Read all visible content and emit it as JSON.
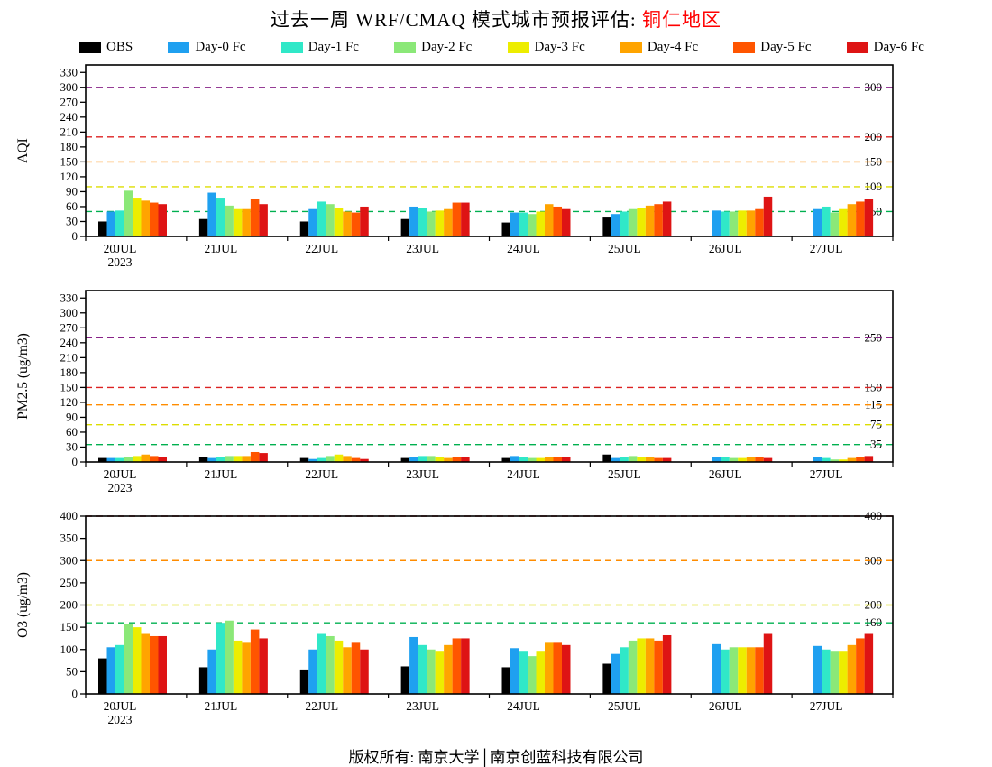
{
  "title": {
    "main": "过去一周 WRF/CMAQ 模式城市预报评估: ",
    "region": "铜仁地区",
    "region_color": "#ff0000"
  },
  "footer": {
    "text": "版权所有: 南京大学│南京创蓝科技有限公司"
  },
  "legend": [
    {
      "label": "OBS",
      "color": "#000000"
    },
    {
      "label": "Day-0 Fc",
      "color": "#1FA0F0"
    },
    {
      "label": "Day-1 Fc",
      "color": "#30E8C8"
    },
    {
      "label": "Day-2 Fc",
      "color": "#8BE878"
    },
    {
      "label": "Day-3 Fc",
      "color": "#EDED00"
    },
    {
      "label": "Day-4 Fc",
      "color": "#FFA400"
    },
    {
      "label": "Day-5 Fc",
      "color": "#FF5500"
    },
    {
      "label": "Day-6 Fc",
      "color": "#DE1414"
    }
  ],
  "chart_data": [
    {
      "type": "bar",
      "name": "aqi",
      "ylabel": "AQI",
      "ylim": [
        0,
        345
      ],
      "yticks": [
        0,
        30,
        60,
        90,
        120,
        150,
        180,
        210,
        240,
        270,
        300,
        330
      ],
      "categories": [
        "20JUL",
        "21JUL",
        "22JUL",
        "23JUL",
        "24JUL",
        "25JUL",
        "26JUL",
        "27JUL"
      ],
      "x_sub_label": "2023",
      "thresholds": [
        {
          "value": 50,
          "color": "#00B050",
          "label": "50"
        },
        {
          "value": 100,
          "color": "#DDDD00",
          "label": "100"
        },
        {
          "value": 150,
          "color": "#FF8C00",
          "label": "150"
        },
        {
          "value": 200,
          "color": "#DD2222",
          "label": "200"
        },
        {
          "value": 300,
          "color": "#882288",
          "label": "300"
        }
      ],
      "series": [
        {
          "name": "OBS",
          "color": "#000000",
          "values": [
            30,
            35,
            30,
            35,
            28,
            38,
            null,
            null
          ]
        },
        {
          "name": "Day-0 Fc",
          "color": "#1FA0F0",
          "values": [
            50,
            88,
            55,
            60,
            48,
            45,
            52,
            55
          ]
        },
        {
          "name": "Day-1 Fc",
          "color": "#30E8C8",
          "values": [
            52,
            78,
            70,
            58,
            48,
            50,
            50,
            60
          ]
        },
        {
          "name": "Day-2 Fc",
          "color": "#8BE878",
          "values": [
            92,
            62,
            65,
            50,
            45,
            55,
            50,
            48
          ]
        },
        {
          "name": "Day-3 Fc",
          "color": "#EDED00",
          "values": [
            78,
            55,
            58,
            52,
            50,
            58,
            52,
            55
          ]
        },
        {
          "name": "Day-4 Fc",
          "color": "#FFA400",
          "values": [
            72,
            55,
            50,
            55,
            65,
            62,
            52,
            65
          ]
        },
        {
          "name": "Day-5 Fc",
          "color": "#FF5500",
          "values": [
            68,
            75,
            48,
            68,
            60,
            65,
            55,
            70
          ]
        },
        {
          "name": "Day-6 Fc",
          "color": "#DE1414",
          "values": [
            65,
            65,
            60,
            68,
            55,
            70,
            80,
            75
          ]
        }
      ]
    },
    {
      "type": "bar",
      "name": "pm25",
      "ylabel": "PM2.5 (ug/m3)",
      "ylim": [
        0,
        345
      ],
      "yticks": [
        0,
        30,
        60,
        90,
        120,
        150,
        180,
        210,
        240,
        270,
        300,
        330
      ],
      "categories": [
        "20JUL",
        "21JUL",
        "22JUL",
        "23JUL",
        "24JUL",
        "25JUL",
        "26JUL",
        "27JUL"
      ],
      "x_sub_label": "2023",
      "thresholds": [
        {
          "value": 35,
          "color": "#00B050",
          "label": "35"
        },
        {
          "value": 75,
          "color": "#DDDD00",
          "label": "75"
        },
        {
          "value": 115,
          "color": "#FF8C00",
          "label": "115"
        },
        {
          "value": 150,
          "color": "#DD2222",
          "label": "150"
        },
        {
          "value": 250,
          "color": "#882288",
          "label": "250"
        }
      ],
      "series": [
        {
          "name": "OBS",
          "color": "#000000",
          "values": [
            8,
            10,
            8,
            8,
            8,
            15,
            null,
            null
          ]
        },
        {
          "name": "Day-0 Fc",
          "color": "#1FA0F0",
          "values": [
            8,
            8,
            6,
            10,
            12,
            8,
            10,
            10
          ]
        },
        {
          "name": "Day-1 Fc",
          "color": "#30E8C8",
          "values": [
            8,
            10,
            8,
            12,
            10,
            10,
            10,
            8
          ]
        },
        {
          "name": "Day-2 Fc",
          "color": "#8BE878",
          "values": [
            10,
            12,
            12,
            12,
            8,
            12,
            8,
            5
          ]
        },
        {
          "name": "Day-3 Fc",
          "color": "#EDED00",
          "values": [
            12,
            12,
            15,
            10,
            8,
            10,
            8,
            5
          ]
        },
        {
          "name": "Day-4 Fc",
          "color": "#FFA400",
          "values": [
            15,
            12,
            12,
            8,
            10,
            10,
            10,
            8
          ]
        },
        {
          "name": "Day-5 Fc",
          "color": "#FF5500",
          "values": [
            12,
            20,
            8,
            10,
            10,
            8,
            10,
            10
          ]
        },
        {
          "name": "Day-6 Fc",
          "color": "#DE1414",
          "values": [
            10,
            18,
            6,
            10,
            10,
            8,
            8,
            12
          ]
        }
      ]
    },
    {
      "type": "bar",
      "name": "o3",
      "ylabel": "O3 (ug/m3)",
      "ylim": [
        0,
        400
      ],
      "yticks": [
        0,
        50,
        100,
        150,
        200,
        250,
        300,
        350,
        400
      ],
      "categories": [
        "20JUL",
        "21JUL",
        "22JUL",
        "23JUL",
        "24JUL",
        "25JUL",
        "26JUL",
        "27JUL"
      ],
      "x_sub_label": "2023",
      "thresholds": [
        {
          "value": 160,
          "color": "#00B050",
          "label": "160"
        },
        {
          "value": 200,
          "color": "#DDDD00",
          "label": "200"
        },
        {
          "value": 300,
          "color": "#FF8C00",
          "label": "300"
        },
        {
          "value": 400,
          "color": "#B22222",
          "label": "400"
        }
      ],
      "series": [
        {
          "name": "OBS",
          "color": "#000000",
          "values": [
            80,
            60,
            55,
            62,
            60,
            68,
            null,
            null
          ]
        },
        {
          "name": "Day-0 Fc",
          "color": "#1FA0F0",
          "values": [
            105,
            100,
            100,
            128,
            103,
            90,
            112,
            108
          ]
        },
        {
          "name": "Day-1 Fc",
          "color": "#30E8C8",
          "values": [
            110,
            160,
            135,
            110,
            95,
            105,
            100,
            100
          ]
        },
        {
          "name": "Day-2 Fc",
          "color": "#8BE878",
          "values": [
            158,
            165,
            130,
            100,
            85,
            120,
            105,
            95
          ]
        },
        {
          "name": "Day-3 Fc",
          "color": "#EDED00",
          "values": [
            150,
            120,
            120,
            95,
            95,
            125,
            105,
            95
          ]
        },
        {
          "name": "Day-4 Fc",
          "color": "#FFA400",
          "values": [
            135,
            115,
            105,
            110,
            115,
            125,
            105,
            110
          ]
        },
        {
          "name": "Day-5 Fc",
          "color": "#FF5500",
          "values": [
            130,
            145,
            115,
            125,
            115,
            120,
            105,
            125
          ]
        },
        {
          "name": "Day-6 Fc",
          "color": "#DE1414",
          "values": [
            130,
            125,
            100,
            125,
            110,
            132,
            135,
            135
          ]
        }
      ]
    }
  ]
}
